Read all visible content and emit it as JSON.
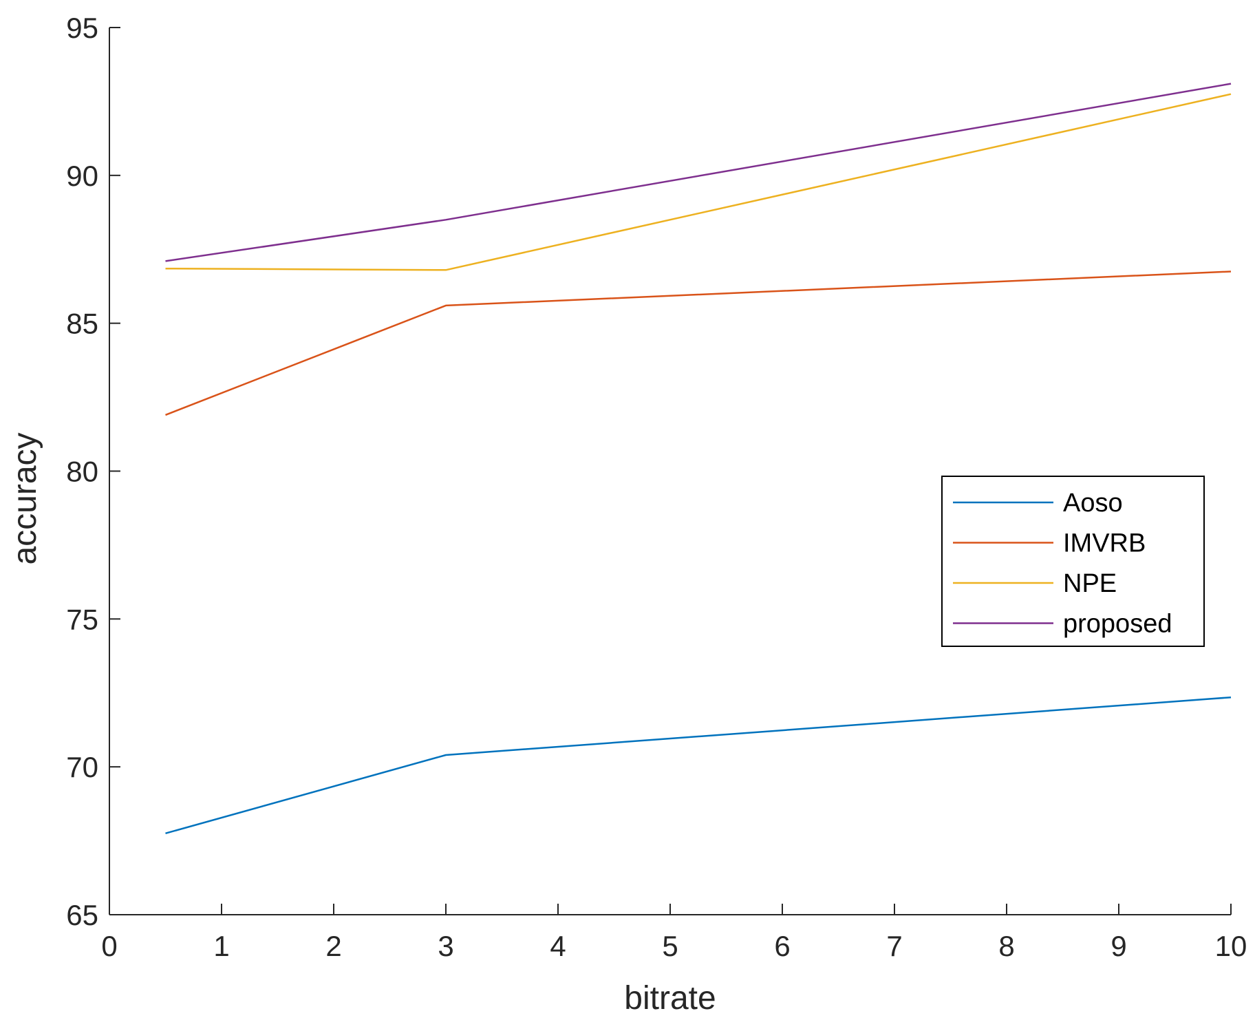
{
  "chart_data": {
    "type": "line",
    "xlabel": "bitrate",
    "ylabel": "accuracy",
    "xlim": [
      0,
      10
    ],
    "ylim": [
      65,
      95
    ],
    "xticks": [
      "0",
      "1",
      "2",
      "3",
      "4",
      "5",
      "6",
      "7",
      "8",
      "9",
      "10"
    ],
    "yticks": [
      "65",
      "70",
      "75",
      "80",
      "85",
      "90",
      "95"
    ],
    "x": [
      0.5,
      3,
      10
    ],
    "series": [
      {
        "name": "Aoso",
        "color": "#0072BD",
        "values": [
          67.75,
          70.4,
          72.35
        ]
      },
      {
        "name": "IMVRB",
        "color": "#D95319",
        "values": [
          81.9,
          85.6,
          86.75
        ]
      },
      {
        "name": "NPE",
        "color": "#EDB120",
        "values": [
          86.85,
          86.8,
          92.75
        ]
      },
      {
        "name": "proposed",
        "color": "#7E2F8E",
        "values": [
          87.1,
          88.5,
          93.1
        ]
      }
    ],
    "legend_position": "right",
    "grid": false
  }
}
